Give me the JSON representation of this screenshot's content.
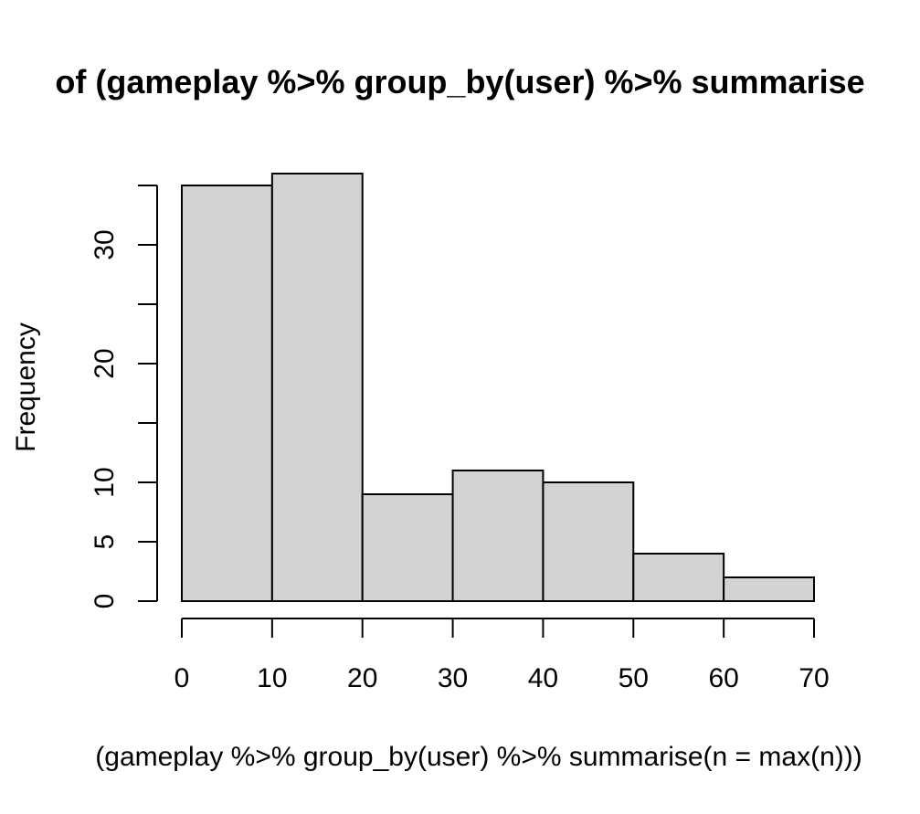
{
  "chart_data": {
    "type": "bar",
    "subtype": "histogram",
    "title": "of (gameplay %>% group_by(user) %>% summarise",
    "xlabel": "(gameplay %>% group_by(user) %>% summarise(n = max(n)))",
    "ylabel": "Frequency",
    "bins": [
      {
        "start": 0,
        "end": 10,
        "count": 35
      },
      {
        "start": 10,
        "end": 20,
        "count": 36
      },
      {
        "start": 20,
        "end": 30,
        "count": 9
      },
      {
        "start": 30,
        "end": 40,
        "count": 11
      },
      {
        "start": 40,
        "end": 50,
        "count": 10
      },
      {
        "start": 50,
        "end": 60,
        "count": 4
      },
      {
        "start": 60,
        "end": 70,
        "count": 2
      }
    ],
    "xlim": [
      0,
      70
    ],
    "ylim": [
      0,
      35
    ],
    "x_ticks": [
      0,
      10,
      20,
      30,
      40,
      50,
      60,
      70
    ],
    "x_tick_labels": [
      "0",
      "10",
      "20",
      "30",
      "40",
      "50",
      "60",
      "70"
    ],
    "y_ticks": [
      0,
      5,
      10,
      15,
      20,
      25,
      30,
      35
    ],
    "y_tick_labels": [
      "0",
      "5",
      "10",
      "",
      "20",
      "",
      "30",
      ""
    ],
    "grid": false,
    "legend": "none",
    "bar_fill": "#d3d3d3",
    "bar_stroke": "#000000"
  }
}
